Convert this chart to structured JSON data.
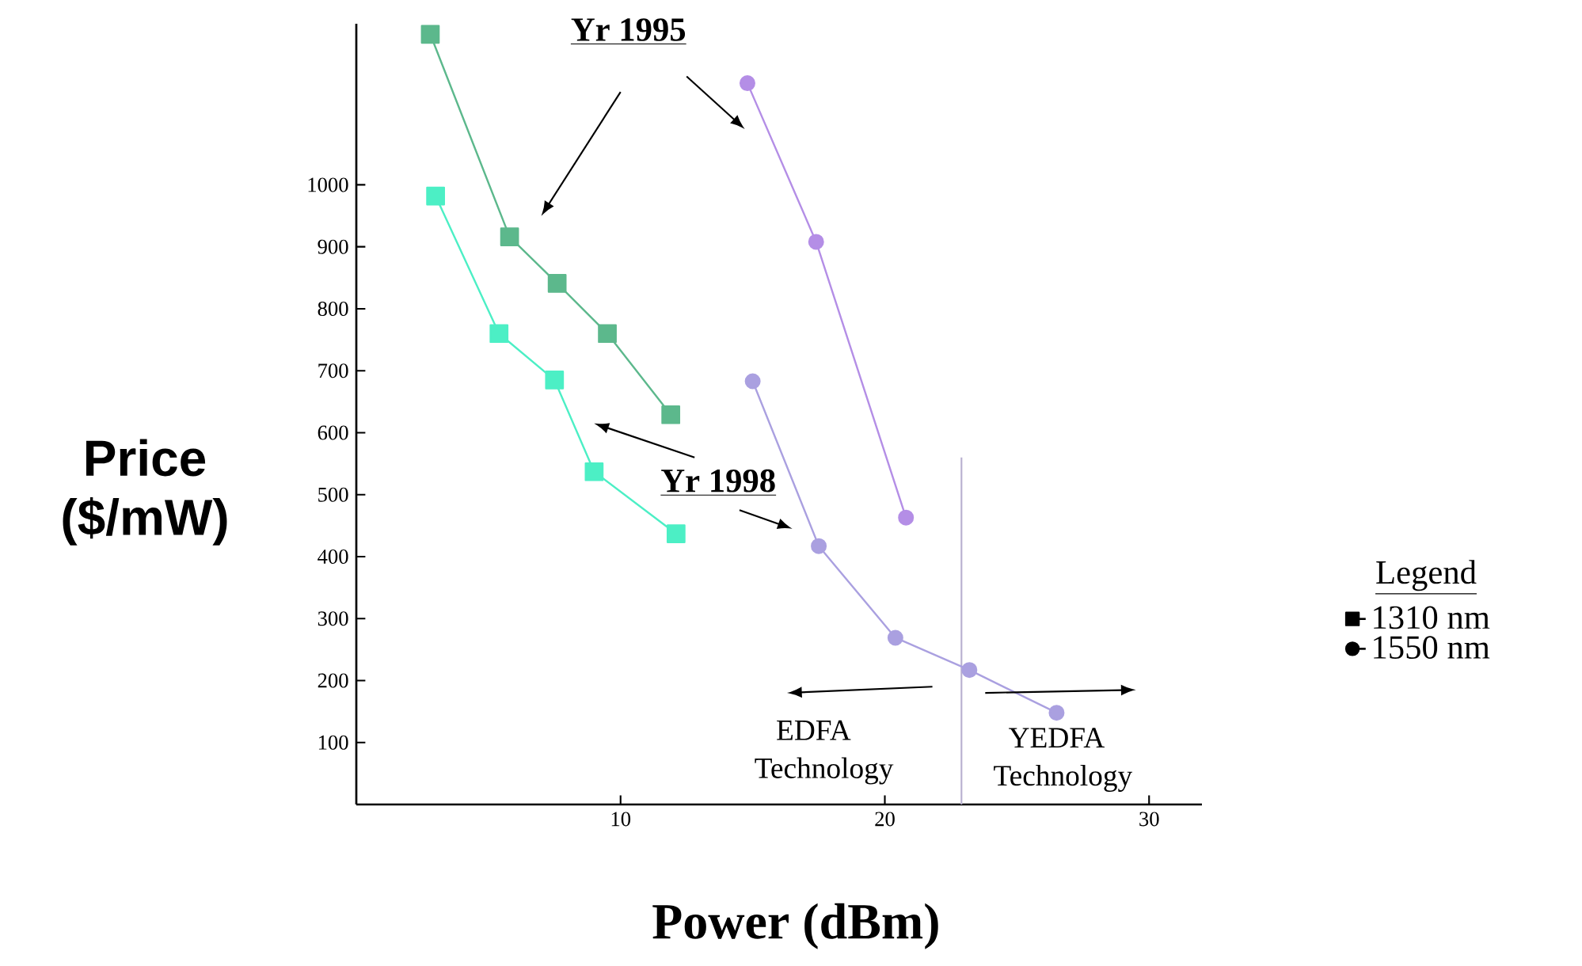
{
  "chart_data": {
    "type": "line",
    "xlabel": "Power (dBm)",
    "ylabel": "Price ($/mW)",
    "legend_title": "Legend",
    "legend": "right",
    "grid": false,
    "xlim": [
      0,
      32
    ],
    "ylim": [
      0,
      1260
    ],
    "xticks": [
      10,
      20,
      30
    ],
    "yticks": [
      100,
      200,
      300,
      400,
      500,
      600,
      700,
      800,
      900,
      1000
    ],
    "series": [
      {
        "name": "1310 nm",
        "color": "#5cb88c",
        "marker": "square",
        "x": [
          2.8,
          5.8,
          7.6,
          9.5,
          11.9
        ],
        "values": [
          1243,
          916,
          841,
          760,
          629
        ]
      },
      {
        "color": "#4cefc5",
        "marker": "square",
        "x": [
          3.0,
          5.4,
          7.5,
          9.0,
          12.1
        ],
        "values": [
          982,
          760,
          685,
          537,
          437
        ]
      },
      {
        "name": "1550 nm",
        "color": "#b48ee6",
        "marker": "circle",
        "x": [
          14.8,
          17.4,
          20.8
        ],
        "values": [
          1164,
          908,
          463
        ]
      },
      {
        "color": "#aaa0e0",
        "marker": "circle",
        "x": [
          15.0,
          17.5,
          20.4,
          23.2,
          26.5
        ],
        "values": [
          683,
          417,
          269,
          217,
          148
        ]
      }
    ],
    "ref_lines": [
      {
        "axis": "x",
        "value": 22.9,
        "color": "#b8b0d0"
      }
    ],
    "annotations": [
      "Yr 1995",
      "Yr 1998",
      "EDFA Technology",
      "YEDFA Technology"
    ]
  }
}
